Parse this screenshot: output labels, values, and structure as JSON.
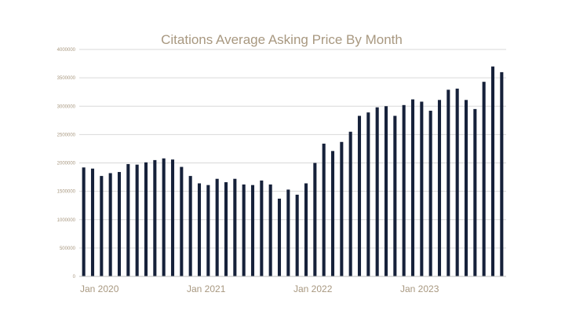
{
  "chart_data": {
    "type": "bar",
    "title": "Citations Average Asking Price By Month",
    "xlabel": "",
    "ylabel": "",
    "ylim": [
      0,
      4000000
    ],
    "yticks": [
      0,
      500000,
      1000000,
      1500000,
      2000000,
      2500000,
      3000000,
      3500000,
      4000000
    ],
    "ytick_labels": [
      "0",
      "500000",
      "1000000",
      "1500000",
      "2000000",
      "2500000",
      "3000000",
      "3500000",
      "4000000"
    ],
    "xtick_labels": [
      {
        "index": 0,
        "label": "Jan 2020"
      },
      {
        "index": 12,
        "label": "Jan 2021"
      },
      {
        "index": 24,
        "label": "Jan 2022"
      },
      {
        "index": 36,
        "label": "Jan 2023"
      }
    ],
    "grid": true,
    "legend": "none",
    "bar_color": "#16213a",
    "values": [
      1920000,
      1900000,
      1770000,
      1820000,
      1840000,
      1980000,
      1970000,
      2010000,
      2050000,
      2080000,
      2060000,
      1930000,
      1770000,
      1640000,
      1610000,
      1720000,
      1660000,
      1720000,
      1620000,
      1610000,
      1690000,
      1620000,
      1370000,
      1530000,
      1440000,
      1640000,
      2000000,
      2340000,
      2210000,
      2370000,
      2550000,
      2830000,
      2890000,
      2980000,
      3000000,
      2830000,
      3020000,
      3120000,
      3080000,
      2920000,
      3110000,
      3290000,
      3310000,
      3110000,
      2950000,
      3430000,
      3700000,
      3600000
    ]
  }
}
